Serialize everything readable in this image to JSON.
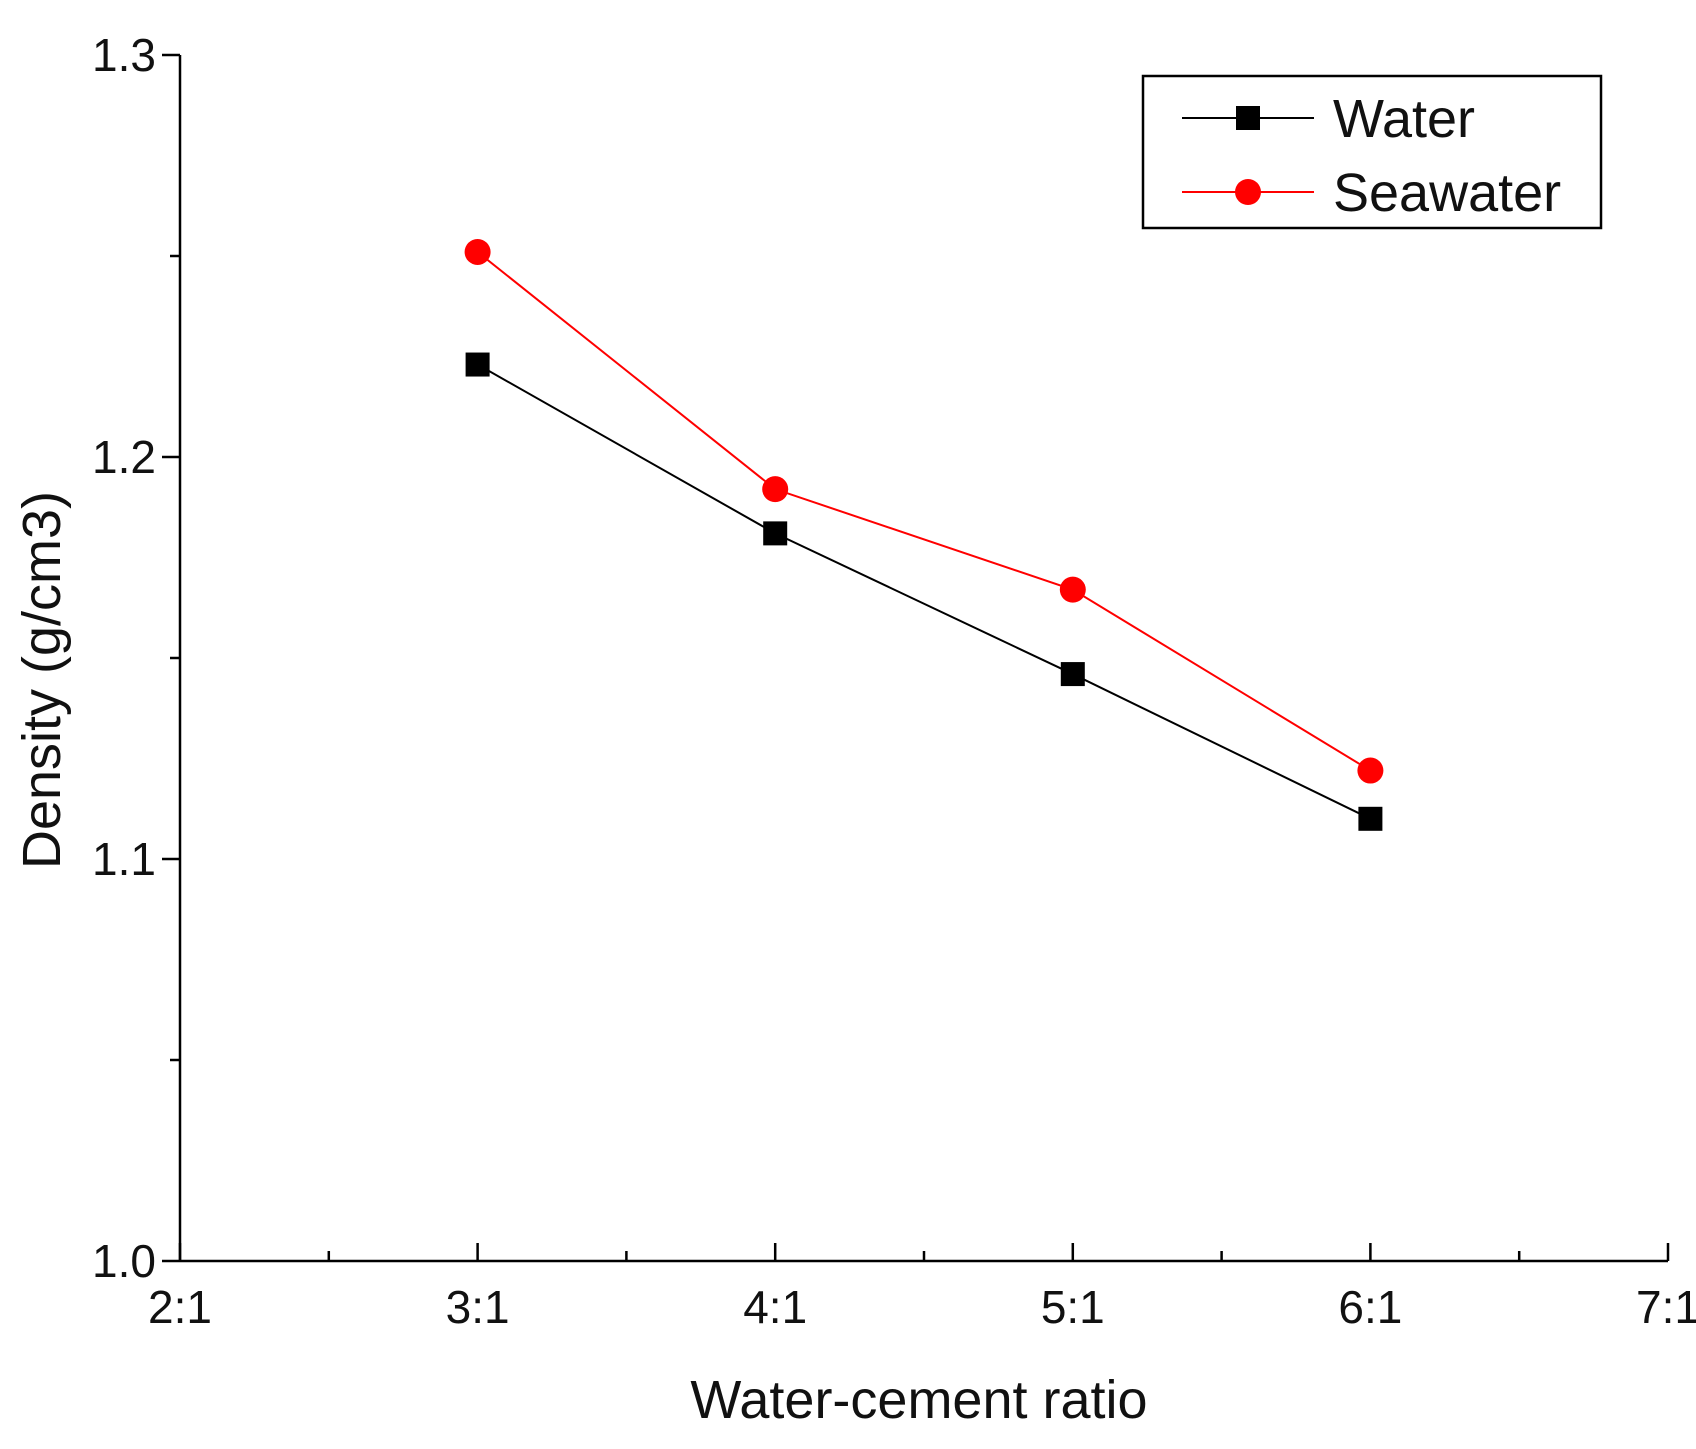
{
  "chart_data": {
    "type": "line",
    "title": "",
    "xlabel": "Water-cement ratio",
    "ylabel": "Density (g/cm3)",
    "categories": [
      "2:1",
      "3:1",
      "4:1",
      "5:1",
      "6:1",
      "7:1"
    ],
    "xlim": [
      2,
      7
    ],
    "ylim": [
      1.0,
      1.3
    ],
    "x_tick_labels": [
      "2:1",
      "3:1",
      "4:1",
      "5:1",
      "6:1",
      "7:1"
    ],
    "y_tick_labels": [
      "1.0",
      "1.1",
      "1.2",
      "1.3"
    ],
    "grid": false,
    "legend_position": "top-right",
    "series": [
      {
        "name": "Water",
        "color": "#000000",
        "marker": "square",
        "x": [
          3,
          4,
          5,
          6
        ],
        "values": [
          1.223,
          1.181,
          1.146,
          1.11
        ]
      },
      {
        "name": "Seawater",
        "color": "#ff0000",
        "marker": "circle",
        "x": [
          3,
          4,
          5,
          6
        ],
        "values": [
          1.251,
          1.192,
          1.167,
          1.122
        ]
      }
    ]
  }
}
